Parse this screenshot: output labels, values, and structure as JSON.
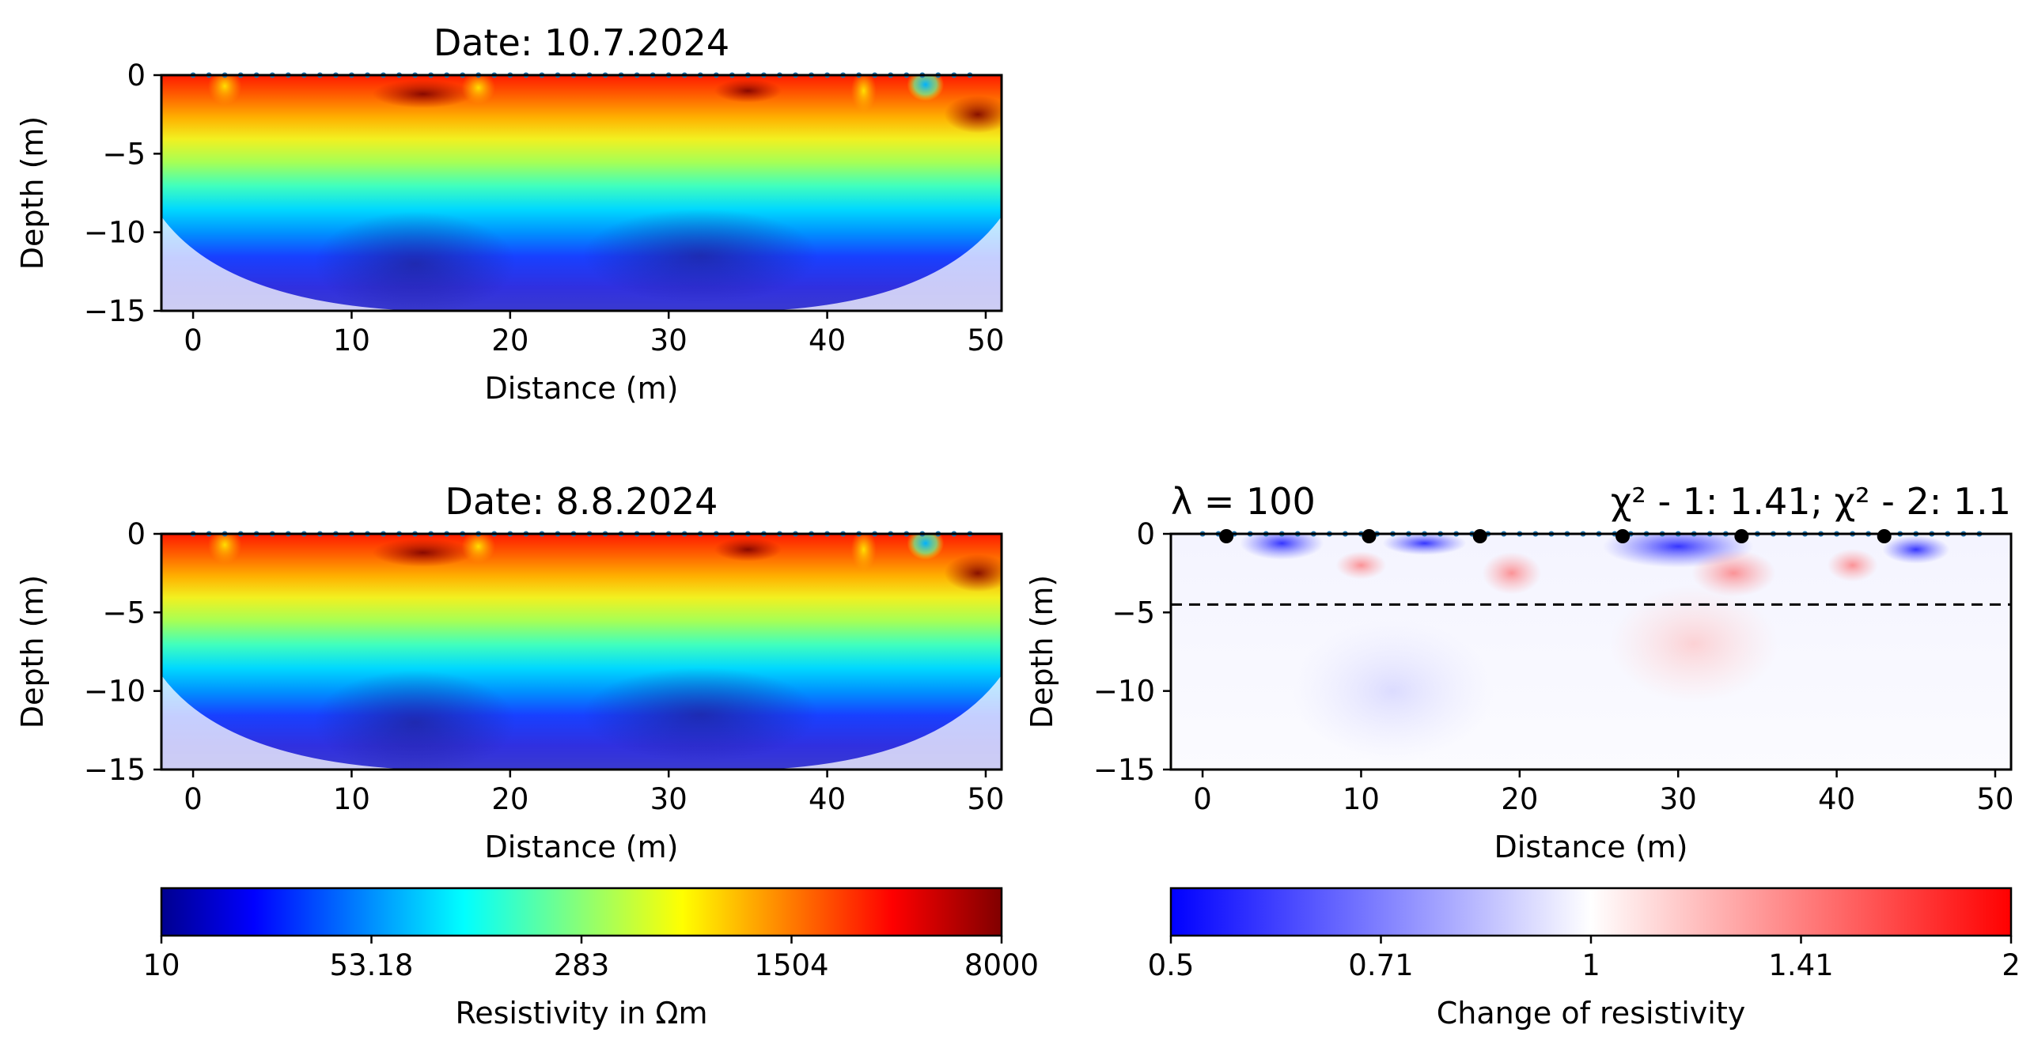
{
  "chart_data": [
    {
      "type": "heatmap",
      "title": "Date: 10.7.2024",
      "xlabel": "Distance (m)",
      "ylabel": "Depth (m)",
      "xlim": [
        -2,
        51
      ],
      "ylim": [
        -15,
        0
      ],
      "xticks": [
        "0",
        "10",
        "20",
        "30",
        "40",
        "50"
      ],
      "yticks": [
        "0",
        "−5",
        "−10",
        "−15"
      ],
      "colormap": "jet",
      "description_values": "log-resistivity field on a triangular mesh; high resistivity (red) near surface, low (blue) around 10-12 m depth",
      "electrodes": "blue dots at 1 m spacing from 0 to 49 m along surface"
    },
    {
      "type": "heatmap",
      "title": "Date: 8.8.2024",
      "xlabel": "Distance (m)",
      "ylabel": "Depth (m)",
      "xlim": [
        -2,
        51
      ],
      "ylim": [
        -15,
        0
      ],
      "xticks": [
        "0",
        "10",
        "20",
        "30",
        "40",
        "50"
      ],
      "yticks": [
        "0",
        "−5",
        "−10",
        "−15"
      ],
      "colormap": "jet"
    },
    {
      "type": "heatmap",
      "title_left": "λ = 100",
      "title_right": "χ² - 1: 1.41; χ² - 2: 1.1",
      "xlabel": "Distance (m)",
      "ylabel": "Depth (m)",
      "xlim": [
        -2,
        51
      ],
      "ylim": [
        -15,
        0
      ],
      "xticks": [
        "0",
        "10",
        "20",
        "30",
        "40",
        "50"
      ],
      "yticks": [
        "0",
        "−5",
        "−10",
        "−15"
      ],
      "colormap": "bwr",
      "dashed_line_depth": -4.5,
      "black_markers_x": [
        1.5,
        10.5,
        17.5,
        26.5,
        34,
        43
      ]
    },
    {
      "type": "colorbar",
      "label": "Resistivity in Ωm",
      "ticks": [
        "10",
        "53.18",
        "283",
        "1504",
        "8000"
      ],
      "colormap": "jet"
    },
    {
      "type": "colorbar",
      "label": "Change of resistivity",
      "ticks": [
        "0.5",
        "0.71",
        "1",
        "1.41",
        "2"
      ],
      "colormap": "bwr"
    }
  ]
}
